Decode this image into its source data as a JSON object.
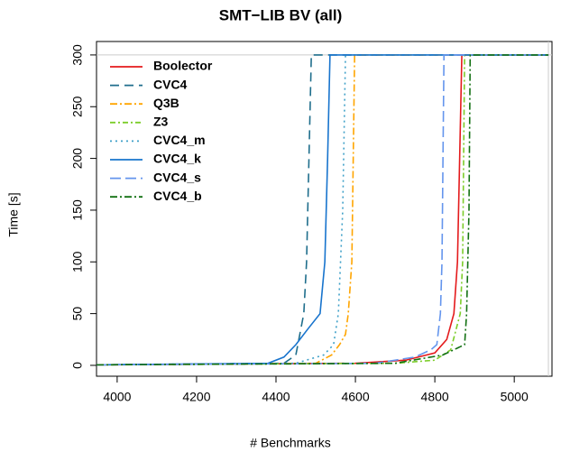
{
  "chart_data": {
    "type": "line",
    "title": "SMT−LIB BV (all)",
    "x_label": "# Benchmarks",
    "y_label": "Time [s]",
    "xlim": [
      3948,
      5095
    ],
    "ylim": [
      -10.5,
      313
    ],
    "xticks": [
      4000,
      4200,
      4400,
      4600,
      4800,
      5000
    ],
    "yticks": [
      0,
      50,
      100,
      150,
      200,
      250,
      300
    ],
    "hline": 300,
    "vline": 5086,
    "reference_color": "#cccccc",
    "legend": "top-left",
    "series": [
      {
        "name": "Boolector",
        "color": "#e41a1c",
        "dash": "none",
        "x": [
          3948,
          4600,
          4727,
          4800,
          4830,
          4848,
          4857,
          4868,
          5086
        ],
        "values": [
          0.5,
          2,
          5,
          12,
          25,
          50,
          100,
          300,
          300
        ]
      },
      {
        "name": "CVC4",
        "color": "#1f6e8c",
        "dash": "10,6",
        "x": [
          3948,
          4420,
          4450,
          4470,
          4477,
          4483,
          4489,
          5086
        ],
        "values": [
          0.5,
          2,
          10,
          50,
          100,
          200,
          300,
          300
        ]
      },
      {
        "name": "Q3B",
        "color": "#ffa500",
        "dash": "8,3,2,3",
        "x": [
          3948,
          4500,
          4540,
          4560,
          4575,
          4582,
          4591,
          4598,
          5086
        ],
        "values": [
          0.5,
          2,
          10,
          20,
          30,
          50,
          100,
          300,
          300
        ]
      },
      {
        "name": "Z3",
        "color": "#7ccd2a",
        "dash": "6,3,2,3",
        "x": [
          3948,
          4700,
          4800,
          4840,
          4864,
          4870,
          4875,
          5086
        ],
        "values": [
          0.5,
          2,
          5,
          15,
          50,
          100,
          300,
          300
        ]
      },
      {
        "name": "CVC4_m",
        "color": "#3fa0c8",
        "dash": "2,4",
        "x": [
          3948,
          4450,
          4520,
          4545,
          4557,
          4568,
          4575,
          5086
        ],
        "values": [
          0.5,
          2,
          10,
          20,
          50,
          150,
          300,
          300
        ]
      },
      {
        "name": "CVC4_k",
        "color": "#1874cd",
        "dash": "none",
        "x": [
          3948,
          4380,
          4420,
          4450,
          4480,
          4511,
          4523,
          4530,
          4536,
          5086
        ],
        "values": [
          0.5,
          2,
          8,
          20,
          35,
          50,
          100,
          200,
          300,
          300
        ]
      },
      {
        "name": "CVC4_s",
        "color": "#6495ed",
        "dash": "12,5",
        "x": [
          3948,
          4650,
          4750,
          4790,
          4805,
          4814,
          4818,
          4823,
          5086
        ],
        "values": [
          0.5,
          2,
          8,
          15,
          20,
          50,
          100,
          300,
          300
        ]
      },
      {
        "name": "CVC4_b",
        "color": "#127012",
        "dash": "8,3,2,3",
        "x": [
          3948,
          4700,
          4820,
          4864,
          4875,
          4880,
          4886,
          4889,
          5086
        ],
        "values": [
          0.5,
          2,
          10,
          18,
          20,
          50,
          150,
          300,
          300
        ]
      }
    ]
  }
}
